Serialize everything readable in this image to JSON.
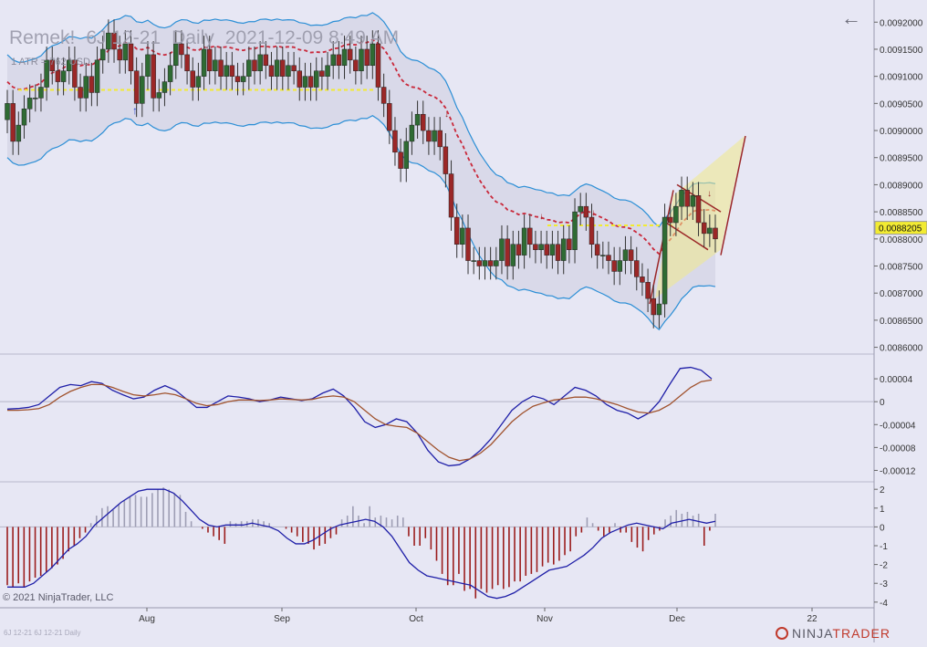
{
  "header": {
    "account": "Remek!",
    "instrument": "6J 12-21",
    "period": "Daily",
    "datetime": "2021-12-09 8:49 AM",
    "atr_label": "1 ATR = 762 USD"
  },
  "footer": {
    "copyright": "© 2021 NinjaTrader, LLC",
    "instrument_tabs": "6J 12-21  6J 12-21 Daily",
    "brand_prefix": "NINJA",
    "brand_suffix": "TRADER"
  },
  "nav": {
    "back_icon": "arrow-left-icon"
  },
  "colors": {
    "background": "#e7e7f4",
    "up_candle": "#2f6b33",
    "down_candle": "#9b2727",
    "bands": "#2c8fd6",
    "midline": "#c9283a",
    "level_line": "#f2eb32",
    "macd_line": "#1f1fa8",
    "signal_line": "#a0522d",
    "hist_pos": "#9e9eb4",
    "hist_neg": "#9b1d1d"
  },
  "chart_data": [
    {
      "type": "candlestick",
      "panel": "price",
      "y_axis_ticks": [
        "0.0092000",
        "0.0091500",
        "0.0091000",
        "0.0090500",
        "0.0090000",
        "0.0089500",
        "0.0089000",
        "0.0088500",
        "0.0088000",
        "0.0087500",
        "0.0087000",
        "0.0086500",
        "0.0086000"
      ],
      "ylim": [
        0.0085875,
        0.0092375
      ],
      "last_price": "0.0088205",
      "x_axis_ticks": [
        "Aug",
        "Sep",
        "Oct",
        "Nov",
        "Dec",
        "22"
      ],
      "series_close": [
        0.00905,
        0.00898,
        0.00901,
        0.00904,
        0.00906,
        0.00906,
        0.00908,
        0.00913,
        0.00911,
        0.00909,
        0.00911,
        0.00913,
        0.00908,
        0.00906,
        0.0091,
        0.00907,
        0.00913,
        0.00915,
        0.00918,
        0.00915,
        0.00913,
        0.00916,
        0.00911,
        0.00905,
        0.0091,
        0.00914,
        0.00906,
        0.00907,
        0.00909,
        0.00912,
        0.00916,
        0.00914,
        0.00911,
        0.00908,
        0.0091,
        0.00915,
        0.00911,
        0.00913,
        0.0091,
        0.00912,
        0.0091,
        0.00909,
        0.0091,
        0.00913,
        0.00911,
        0.00914,
        0.00912,
        0.0091,
        0.00913,
        0.0091,
        0.00912,
        0.00911,
        0.00908,
        0.0091,
        0.00908,
        0.00911,
        0.0091,
        0.00912,
        0.00914,
        0.00912,
        0.00915,
        0.00913,
        0.00911,
        0.00915,
        0.00912,
        0.00916,
        0.00908,
        0.00905,
        0.009,
        0.00896,
        0.00893,
        0.00898,
        0.00901,
        0.00903,
        0.009,
        0.00898,
        0.009,
        0.00897,
        0.00892,
        0.00884,
        0.00879,
        0.00882,
        0.00876,
        0.00876,
        0.00875,
        0.00876,
        0.00875,
        0.00876,
        0.0088,
        0.00875,
        0.00879,
        0.00877,
        0.00882,
        0.00879,
        0.00878,
        0.00879,
        0.00877,
        0.00879,
        0.00876,
        0.0088,
        0.00878,
        0.00885,
        0.00886,
        0.00884,
        0.00879,
        0.00877,
        0.00877,
        0.00876,
        0.00874,
        0.00876,
        0.00878,
        0.00876,
        0.00873,
        0.00872,
        0.00869,
        0.00866,
        0.00868,
        0.00884,
        0.00883,
        0.00886,
        0.00889,
        0.00886,
        0.00888,
        0.00883,
        0.00881,
        0.00882,
        0.0088
      ],
      "ma_levels": {
        "upper_band_start": 0.00918,
        "lower_band_start": 0.00898
      },
      "annotations": [
        "down-arrow markers",
        "up-arrow marker",
        "yellow breakout projection",
        "red trend channel"
      ]
    },
    {
      "type": "line",
      "panel": "macd",
      "y_axis_ticks": [
        "0.00004",
        "0",
        "-0.00004",
        "-0.00008",
        "-0.00012"
      ],
      "ylim": [
        -0.00014,
        8e-05
      ],
      "series": [
        {
          "values": [
            -1.3e-05,
            -1.2e-05,
            -1e-05,
            -5e-06,
            1e-05,
            2.5e-05,
            3e-05,
            2.8e-05,
            3.5e-05,
            3.2e-05,
            2e-05,
            1.2e-05,
            5e-06,
            8e-06,
            2e-05,
            2.8e-05,
            2e-05,
            5e-06,
            -1e-05,
            -1e-05,
            0.0,
            1e-05,
            8e-06,
            5e-06,
            0.0,
            3e-06,
            8e-06,
            5e-06,
            2e-06,
            5e-06,
            1.5e-05,
            2.2e-05,
            1e-05,
            -1e-05,
            -3.5e-05,
            -4.5e-05,
            -4e-05,
            -3e-05,
            -3.5e-05,
            -5.5e-05,
            -8.5e-05,
            -0.000105,
            -0.000112,
            -0.00011,
            -0.0001,
            -8.5e-05,
            -6.5e-05,
            -4e-05,
            -1.5e-05,
            0.0,
            1e-05,
            5e-06,
            -5e-06,
            1e-05,
            2.5e-05,
            2e-05,
            1e-05,
            -5e-06,
            -1.5e-05,
            -2e-05,
            -3e-05,
            -2e-05,
            0.0,
            3e-05,
            5.8e-05,
            6e-05,
            5.5e-05,
            4e-05
          ]
        },
        {
          "values": [
            -1.5e-05,
            -1.5e-05,
            -1.4e-05,
            -1.2e-05,
            -5e-06,
            8e-06,
            1.8e-05,
            2.5e-05,
            3e-05,
            3e-05,
            2.5e-05,
            1.8e-05,
            1.2e-05,
            1e-05,
            1.2e-05,
            1.5e-05,
            1.2e-05,
            5e-06,
            -3e-06,
            -7e-06,
            -5e-06,
            0.0,
            3e-06,
            3e-06,
            2e-06,
            3e-06,
            5e-06,
            4e-06,
            3e-06,
            4e-06,
            8e-06,
            1e-05,
            8e-06,
            0.0,
            -1.5e-05,
            -3e-05,
            -4e-05,
            -4.3e-05,
            -4.5e-05,
            -5.5e-05,
            -7e-05,
            -8.5e-05,
            -9.7e-05,
            -0.000103,
            -0.0001,
            -9e-05,
            -7.5e-05,
            -5.5e-05,
            -3.5e-05,
            -2e-05,
            -8e-06,
            -2e-06,
            3e-06,
            5e-06,
            8e-06,
            8e-06,
            5e-06,
            0.0,
            -5e-06,
            -1.2e-05,
            -1.8e-05,
            -2e-05,
            -1.5e-05,
            -5e-06,
            1e-05,
            2.5e-05,
            3.5e-05,
            3.8e-05
          ]
        }
      ]
    },
    {
      "type": "bar",
      "panel": "histogram",
      "y_axis_ticks": [
        "2",
        "1",
        "0",
        "-1",
        "-2",
        "-3",
        "-4"
      ],
      "ylim": [
        -4.3,
        2.3
      ],
      "histogram": [
        -3.1,
        -3.2,
        -3.0,
        -3.2,
        -2.9,
        -2.7,
        -2.6,
        -2.4,
        -2.2,
        -2.0,
        -1.7,
        -1.3,
        -1.0,
        -0.6,
        -0.3,
        0.2,
        0.6,
        1.0,
        1.1,
        0.9,
        1.2,
        1.4,
        1.6,
        1.7,
        1.6,
        1.6,
        1.8,
        2.0,
        2.1,
        2.0,
        1.8,
        1.7,
        0.8,
        0.3,
        0.0,
        -0.1,
        -0.3,
        -0.5,
        -0.7,
        -0.9,
        0.3,
        0.2,
        0.3,
        0.3,
        0.4,
        0.4,
        0.3,
        0.2,
        0.0,
        0.0,
        -0.1,
        -0.3,
        -0.5,
        -0.8,
        -0.9,
        -1.2,
        -1.0,
        -0.9,
        -0.6,
        -0.4,
        0.4,
        0.6,
        1.1,
        0.6,
        0.2,
        1.1,
        0.5,
        0.6,
        0.5,
        0.4,
        0.6,
        0.5,
        -0.5,
        -1.0,
        -1.0,
        -0.6,
        -1.2,
        -1.8,
        -2.5,
        -3.1,
        -3.1,
        -2.5,
        -3.4,
        -3.3,
        -3.8,
        -3.3,
        -3.5,
        -3.3,
        -3.1,
        -3.3,
        -3.2,
        -2.9,
        -2.9,
        -2.6,
        -2.5,
        -2.4,
        -2.1,
        -1.9,
        -2.0,
        -1.8,
        -1.5,
        -1.3,
        -0.5,
        -0.3,
        0.5,
        0.2,
        -0.2,
        -0.5,
        -0.3,
        0.2,
        -0.3,
        -0.3,
        -0.8,
        -1.1,
        -1.3,
        -0.7,
        -0.4,
        -0.2,
        0.4,
        0.6,
        0.9,
        0.7,
        0.8,
        0.6,
        0.7,
        -1.0,
        -0.2,
        0.7
      ],
      "line": [
        -3.2,
        -3.2,
        -3.2,
        -3.0,
        -2.6,
        -2.2,
        -1.7,
        -1.2,
        -0.9,
        -0.5,
        0.1,
        0.5,
        0.9,
        1.3,
        1.6,
        1.9,
        2.0,
        2.0,
        2.0,
        1.8,
        1.4,
        0.9,
        0.4,
        0.1,
        0.0,
        0.1,
        0.1,
        0.1,
        0.2,
        0.1,
        0.0,
        -0.2,
        -0.6,
        -0.9,
        -0.9,
        -0.7,
        -0.4,
        -0.1,
        0.1,
        0.2,
        0.3,
        0.4,
        0.3,
        0.0,
        -0.5,
        -1.2,
        -1.9,
        -2.3,
        -2.6,
        -2.7,
        -2.8,
        -2.9,
        -3.0,
        -3.1,
        -3.4,
        -3.7,
        -3.8,
        -3.7,
        -3.5,
        -3.2,
        -2.9,
        -2.6,
        -2.3,
        -2.2,
        -2.1,
        -1.8,
        -1.5,
        -1.1,
        -0.6,
        -0.3,
        -0.1,
        0.1,
        0.2,
        0.1,
        0.0,
        -0.1,
        0.2,
        0.3,
        0.4,
        0.3,
        0.2,
        0.3
      ]
    }
  ]
}
